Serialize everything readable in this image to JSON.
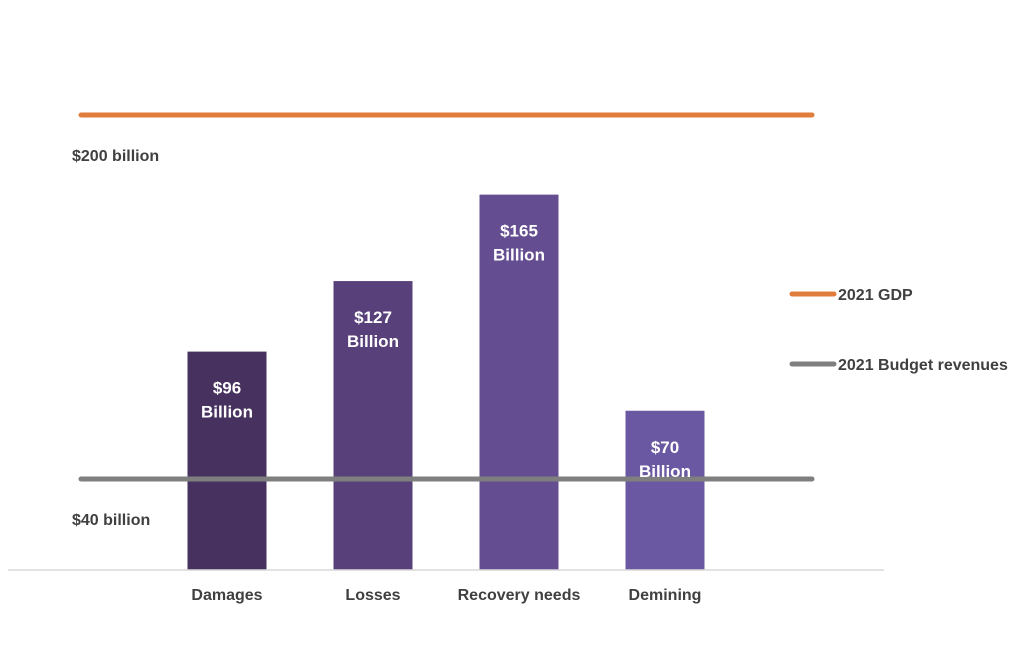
{
  "chart_data": {
    "type": "bar",
    "title": "",
    "xlabel": "",
    "ylabel": "",
    "ylim": [
      0,
      220
    ],
    "categories": [
      "Damages",
      "Losses",
      "Recovery needs",
      "Demining"
    ],
    "values": [
      96,
      127,
      165,
      70
    ],
    "data_labels": [
      [
        "$96",
        "Billion"
      ],
      [
        "$127",
        "Billion"
      ],
      [
        "$165",
        "Billion"
      ],
      [
        "$70",
        "Billion"
      ]
    ],
    "bar_colors": [
      "#47325f",
      "#58407a",
      "#644e91",
      "#6b58a2"
    ],
    "reference_lines": [
      {
        "name": "2021 GDP",
        "value": 200,
        "label": "$200 billion",
        "color": "#e07d3c"
      },
      {
        "name": "2021 Budget revenues",
        "value": 40,
        "label": "$40 billion",
        "color": "#7f7f7f"
      }
    ],
    "legend": {
      "position": "right",
      "entries": [
        {
          "label": "2021 GDP",
          "color": "#e07d3c"
        },
        {
          "label": "2021 Budget revenues",
          "color": "#7f7f7f"
        }
      ]
    },
    "axis_color": "#d9d9d9"
  }
}
